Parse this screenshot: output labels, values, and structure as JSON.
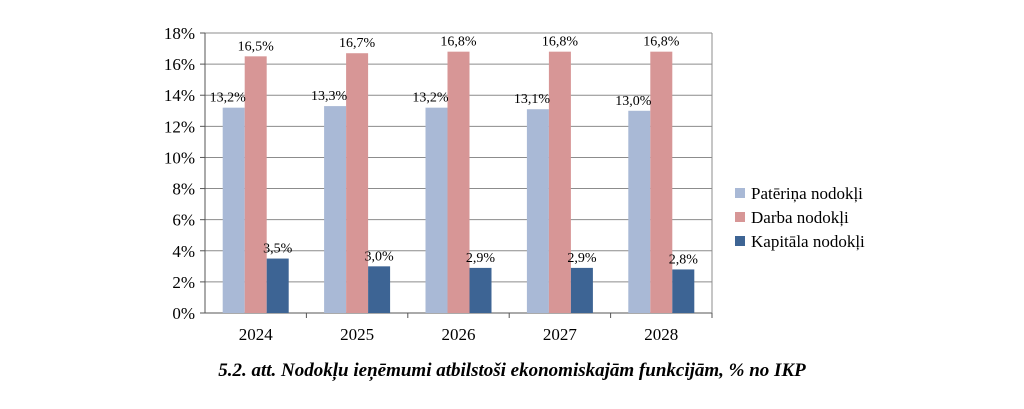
{
  "chart_data": {
    "type": "bar",
    "categories": [
      "2024",
      "2025",
      "2026",
      "2027",
      "2028"
    ],
    "series": [
      {
        "name": "Patēriņa nodokļi",
        "color": "#a9b9d6",
        "values": [
          13.2,
          13.3,
          13.2,
          13.1,
          13.0
        ],
        "labels": [
          "13,2%",
          "13,3%",
          "13,2%",
          "13,1%",
          "13,0%"
        ]
      },
      {
        "name": "Darba nodokļi",
        "color": "#d79696",
        "values": [
          16.5,
          16.7,
          16.8,
          16.8,
          16.8
        ],
        "labels": [
          "16,5%",
          "16,7%",
          "16,8%",
          "16,8%",
          "16,8%"
        ]
      },
      {
        "name": "Kapitāla nodokļi",
        "color": "#3d6494",
        "values": [
          3.5,
          3.0,
          2.9,
          2.9,
          2.8
        ],
        "labels": [
          "3,5%",
          "3,0%",
          "2,9%",
          "2,9%",
          "2,8%"
        ]
      }
    ],
    "y_ticks": [
      "0%",
      "2%",
      "4%",
      "6%",
      "8%",
      "10%",
      "12%",
      "14%",
      "16%",
      "18%"
    ],
    "ylim": [
      0,
      18
    ],
    "grid": true,
    "legend": "right",
    "title": "",
    "xlabel": "",
    "ylabel": ""
  },
  "caption": "5.2. att. Nodokļu ieņēmumi atbilstoši ekonomiskajām funkcijām, % no IKP"
}
